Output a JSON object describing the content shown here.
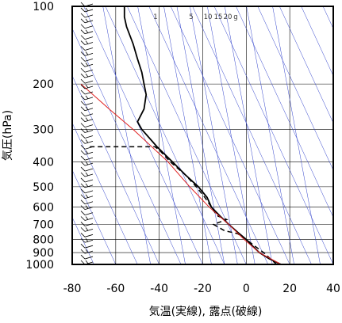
{
  "chart_data": {
    "type": "line",
    "xlabel": "気温(実線), 露点(破線)",
    "ylabel": "気圧(hPa)",
    "xlim": [
      -80,
      40
    ],
    "ylim": [
      1000,
      100
    ],
    "yscale": "log",
    "x_ticks": [
      "-80",
      "-60",
      "-40",
      "-20",
      "0",
      "20",
      "40"
    ],
    "y_ticks": [
      {
        "p": 100,
        "label": "100"
      },
      {
        "p": 200,
        "label": "200"
      },
      {
        "p": 300,
        "label": "300"
      },
      {
        "p": 400,
        "label": "400"
      },
      {
        "p": 500,
        "label": "500"
      },
      {
        "p": 600,
        "label": "600"
      },
      {
        "p": 700,
        "label": "700"
      },
      {
        "p": 800,
        "label": "800"
      },
      {
        "p": 900,
        "label": "900"
      },
      {
        "p": 1000,
        "label": "1000"
      }
    ],
    "mixing_ratio_labels": [
      "1",
      "5",
      "10",
      "15",
      "20",
      "g"
    ],
    "grid": true,
    "colors": {
      "temperature": "#000000",
      "dewpoint": "#000000",
      "parcel": "#e02020",
      "dry_adiabat": "#3344cc",
      "mixing_ratio": "#3344cc",
      "grid": "#000000"
    },
    "series": [
      {
        "style": "solid",
        "points": [
          {
            "p": 1000,
            "t": 16
          },
          {
            "p": 950,
            "t": 10.5
          },
          {
            "p": 900,
            "t": 6
          },
          {
            "p": 850,
            "t": 3
          },
          {
            "p": 800,
            "t": 0
          },
          {
            "p": 750,
            "t": -4
          },
          {
            "p": 700,
            "t": -8
          },
          {
            "p": 650,
            "t": -12
          },
          {
            "p": 600,
            "t": -16
          },
          {
            "p": 550,
            "t": -18
          },
          {
            "p": 500,
            "t": -22
          },
          {
            "p": 450,
            "t": -28
          },
          {
            "p": 400,
            "t": -34
          },
          {
            "p": 350,
            "t": -41
          },
          {
            "p": 300,
            "t": -48
          },
          {
            "p": 280,
            "t": -50
          },
          {
            "p": 250,
            "t": -47
          },
          {
            "p": 220,
            "t": -46
          },
          {
            "p": 200,
            "t": -47
          },
          {
            "p": 180,
            "t": -48
          },
          {
            "p": 160,
            "t": -50
          },
          {
            "p": 140,
            "t": -52
          },
          {
            "p": 120,
            "t": -55
          },
          {
            "p": 110,
            "t": -56
          },
          {
            "p": 100,
            "t": -56
          }
        ]
      },
      {
        "style": "dashed",
        "points": [
          {
            "p": 1000,
            "t": 14
          },
          {
            "p": 950,
            "t": 11
          },
          {
            "p": 900,
            "t": 8
          },
          {
            "p": 850,
            "t": 4
          },
          {
            "p": 800,
            "t": 0
          },
          {
            "p": 760,
            "t": -4
          },
          {
            "p": 740,
            "t": -10
          },
          {
            "p": 700,
            "t": -15
          },
          {
            "p": 670,
            "t": -9
          },
          {
            "p": 650,
            "t": -13
          },
          {
            "p": 620,
            "t": -15
          },
          {
            "p": 600,
            "t": -16
          },
          {
            "p": 550,
            "t": -19
          },
          {
            "p": 500,
            "t": -23
          },
          {
            "p": 450,
            "t": -28
          },
          {
            "p": 400,
            "t": -35
          },
          {
            "p": 360,
            "t": -40
          },
          {
            "p": 350,
            "t": -42
          },
          {
            "p": 350,
            "t": -72
          }
        ]
      },
      {
        "style": "parcel",
        "points": [
          {
            "p": 1000,
            "t": 16
          },
          {
            "p": 900,
            "t": 6
          },
          {
            "p": 800,
            "t": -1
          },
          {
            "p": 700,
            "t": -8
          },
          {
            "p": 600,
            "t": -17
          },
          {
            "p": 500,
            "t": -26
          },
          {
            "p": 400,
            "t": -36
          },
          {
            "p": 300,
            "t": -52
          },
          {
            "p": 250,
            "t": -63
          },
          {
            "p": 200,
            "t": -76
          }
        ]
      }
    ]
  }
}
